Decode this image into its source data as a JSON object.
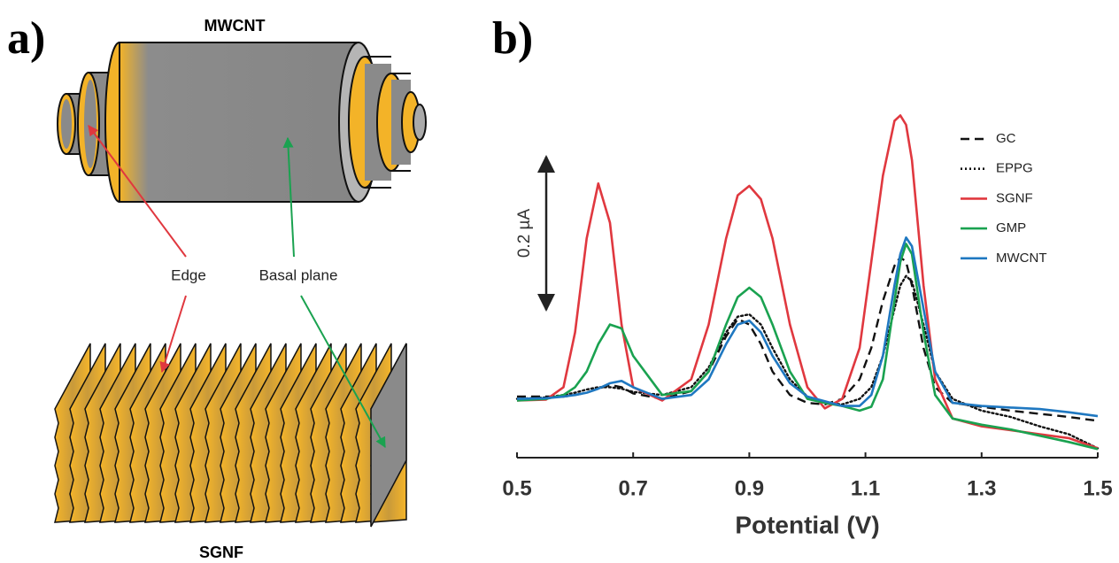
{
  "diagram": {
    "panel_a": "a)",
    "panel_b": "b)",
    "top_label": "MWCNT",
    "edge_label": "Edge",
    "basal_label": "Basal plane",
    "bottom_label": "SGNF"
  },
  "chart_data": {
    "type": "line",
    "xlabel": "Potential (V)",
    "xlim": [
      0.5,
      1.5
    ],
    "xticks": [
      0.5,
      0.7,
      0.9,
      1.1,
      1.3,
      1.5
    ],
    "ylim": [
      0,
      0.46
    ],
    "scale_bar": {
      "value": 0.2,
      "label": "0.2 µA"
    },
    "legend": "upper right",
    "x": [
      0.5,
      0.55,
      0.58,
      0.6,
      0.62,
      0.64,
      0.66,
      0.68,
      0.7,
      0.75,
      0.8,
      0.83,
      0.86,
      0.88,
      0.9,
      0.92,
      0.94,
      0.97,
      1.0,
      1.03,
      1.06,
      1.09,
      1.11,
      1.13,
      1.15,
      1.16,
      1.17,
      1.18,
      1.2,
      1.22,
      1.25,
      1.3,
      1.35,
      1.4,
      1.45,
      1.5
    ],
    "series": [
      {
        "name": "GC",
        "color": "#111111",
        "line_style": "dashed",
        "values": [
          0.078,
          0.078,
          0.078,
          0.08,
          0.083,
          0.088,
          0.093,
          0.09,
          0.082,
          0.075,
          0.085,
          0.11,
          0.155,
          0.177,
          0.17,
          0.145,
          0.11,
          0.08,
          0.07,
          0.068,
          0.075,
          0.1,
          0.14,
          0.2,
          0.245,
          0.256,
          0.25,
          0.22,
          0.14,
          0.09,
          0.07,
          0.065,
          0.06,
          0.056,
          0.052,
          0.047
        ]
      },
      {
        "name": "EPPG",
        "color": "#111111",
        "line_style": "dotted",
        "values": [
          0.075,
          0.077,
          0.08,
          0.083,
          0.087,
          0.09,
          0.09,
          0.088,
          0.084,
          0.08,
          0.09,
          0.115,
          0.16,
          0.18,
          0.183,
          0.17,
          0.14,
          0.1,
          0.078,
          0.07,
          0.068,
          0.075,
          0.09,
          0.13,
          0.19,
          0.22,
          0.232,
          0.225,
          0.17,
          0.11,
          0.075,
          0.06,
          0.052,
          0.04,
          0.03,
          0.012
        ]
      },
      {
        "name": "SGNF",
        "color": "#e0383f",
        "line_style": "solid",
        "values": [
          0.073,
          0.074,
          0.09,
          0.16,
          0.28,
          0.35,
          0.3,
          0.17,
          0.09,
          0.073,
          0.1,
          0.17,
          0.28,
          0.335,
          0.347,
          0.33,
          0.28,
          0.17,
          0.09,
          0.063,
          0.075,
          0.14,
          0.25,
          0.36,
          0.43,
          0.437,
          0.425,
          0.38,
          0.22,
          0.1,
          0.05,
          0.04,
          0.035,
          0.03,
          0.025,
          0.012
        ]
      },
      {
        "name": "GMP",
        "color": "#1aa250",
        "line_style": "solid",
        "values": [
          0.073,
          0.075,
          0.08,
          0.09,
          0.11,
          0.145,
          0.17,
          0.165,
          0.13,
          0.08,
          0.085,
          0.11,
          0.17,
          0.205,
          0.217,
          0.205,
          0.17,
          0.11,
          0.075,
          0.07,
          0.066,
          0.06,
          0.065,
          0.1,
          0.2,
          0.25,
          0.273,
          0.26,
          0.16,
          0.08,
          0.05,
          0.042,
          0.036,
          0.028,
          0.02,
          0.011
        ]
      },
      {
        "name": "MWCNT",
        "color": "#1f78c1",
        "line_style": "solid",
        "values": [
          0.075,
          0.076,
          0.078,
          0.08,
          0.083,
          0.088,
          0.095,
          0.098,
          0.09,
          0.075,
          0.08,
          0.1,
          0.145,
          0.17,
          0.175,
          0.16,
          0.13,
          0.095,
          0.078,
          0.072,
          0.066,
          0.066,
          0.08,
          0.13,
          0.22,
          0.26,
          0.281,
          0.27,
          0.19,
          0.11,
          0.07,
          0.066,
          0.064,
          0.062,
          0.058,
          0.053
        ]
      }
    ]
  }
}
